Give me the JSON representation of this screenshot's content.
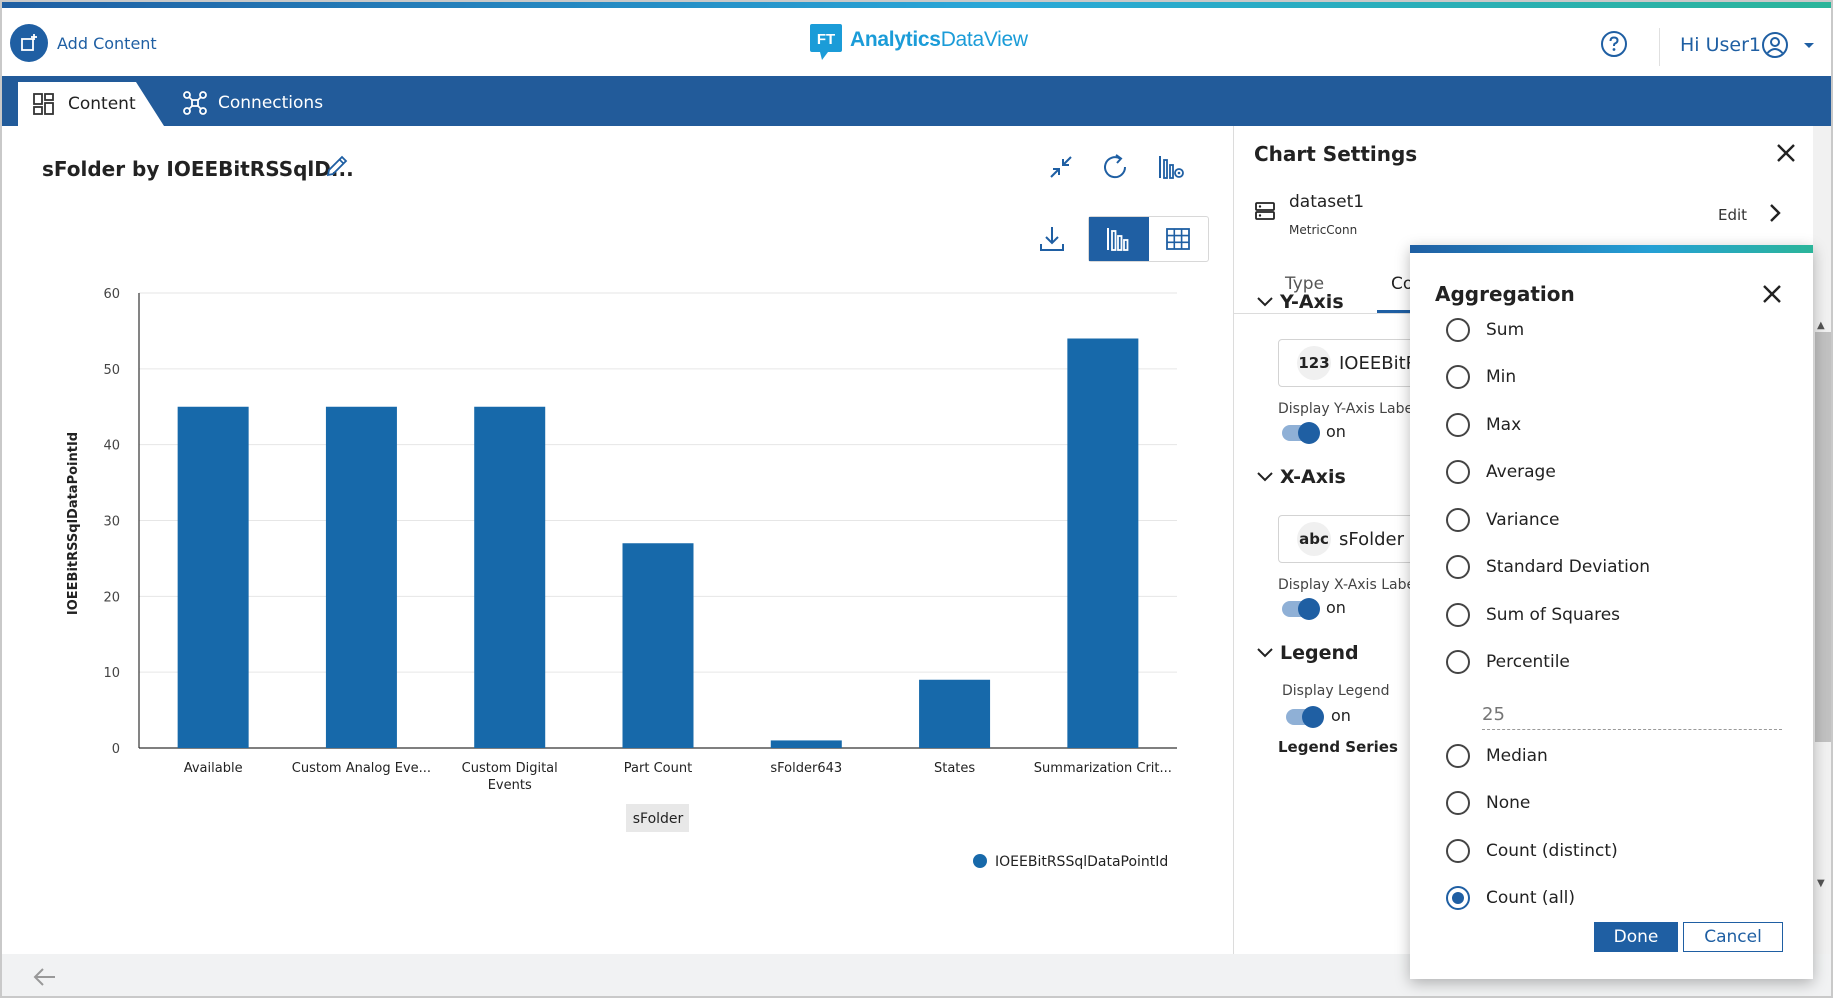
{
  "header": {
    "add_content_label": "Add Content",
    "logo_badge": "FT",
    "logo_brand": "Analytics",
    "logo_product": "DataView",
    "user_label": "Hi User1"
  },
  "nav": {
    "tabs": [
      {
        "label": "Content",
        "active": true,
        "icon": "dashboard-icon"
      },
      {
        "label": "Connections",
        "active": false,
        "icon": "connections-icon"
      }
    ]
  },
  "chart_panel": {
    "title": "sFolder by IOEEBitRSSqlD...",
    "toolbar_icons": [
      "collapse-icon",
      "refresh-icon",
      "chart-settings-icon",
      "download-icon",
      "bar-chart-icon",
      "table-grid-icon"
    ],
    "active_view": "chart"
  },
  "chart_data": {
    "type": "bar",
    "categories": [
      "Available",
      "Custom Analog Eve...",
      "Custom Digital Events",
      "Part Count",
      "sFolder643",
      "States",
      "Summarization Crit..."
    ],
    "category_lines": [
      [
        "Available"
      ],
      [
        "Custom Analog Eve..."
      ],
      [
        "Custom Digital",
        "Events"
      ],
      [
        "Part Count"
      ],
      [
        "sFolder643"
      ],
      [
        "States"
      ],
      [
        "Summarization Crit..."
      ]
    ],
    "series": [
      {
        "name": "IOEEBitRSSqlDataPointId",
        "values": [
          45,
          45,
          45,
          27,
          1,
          9,
          54
        ],
        "color": "#1769aa"
      }
    ],
    "xlabel": "sFolder",
    "ylabel": "IOEEBitRSSqlDataPointId",
    "ylim": [
      0,
      60
    ],
    "yticks": [
      0,
      10,
      20,
      30,
      40,
      50,
      60
    ],
    "grid": true,
    "legend_position": "bottom-right"
  },
  "settings": {
    "title": "Chart Settings",
    "dataset_name": "dataset1",
    "dataset_connection": "MetricConn",
    "edit_label": "Edit",
    "tabs": [
      {
        "label": "Type"
      },
      {
        "label": "Co"
      }
    ],
    "y_axis": {
      "section_label": "Y-Axis",
      "field_badge": "123",
      "field_name": "IOEEBitRS",
      "display_label": "Display Y-Axis Labe",
      "toggle_text": "on"
    },
    "x_axis": {
      "section_label": "X-Axis",
      "field_badge": "abc",
      "field_name": "sFolder",
      "display_label": "Display X-Axis Labe",
      "toggle_text": "on"
    },
    "legend": {
      "section_label": "Legend",
      "display_label": "Display Legend",
      "toggle_text": "on",
      "series_label": "Legend Series"
    }
  },
  "aggregation": {
    "title": "Aggregation",
    "options": [
      {
        "label": "Sum",
        "checked": false
      },
      {
        "label": "Min",
        "checked": false
      },
      {
        "label": "Max",
        "checked": false
      },
      {
        "label": "Average",
        "checked": false
      },
      {
        "label": "Variance",
        "checked": false
      },
      {
        "label": "Standard Deviation",
        "checked": false
      },
      {
        "label": "Sum of Squares",
        "checked": false
      },
      {
        "label": "Percentile",
        "checked": false
      },
      {
        "label": "Median",
        "checked": false
      },
      {
        "label": "None",
        "checked": false
      },
      {
        "label": "Count (distinct)",
        "checked": false
      },
      {
        "label": "Count (all)",
        "checked": true
      }
    ],
    "percentile_placeholder": "25",
    "done_label": "Done",
    "cancel_label": "Cancel"
  }
}
